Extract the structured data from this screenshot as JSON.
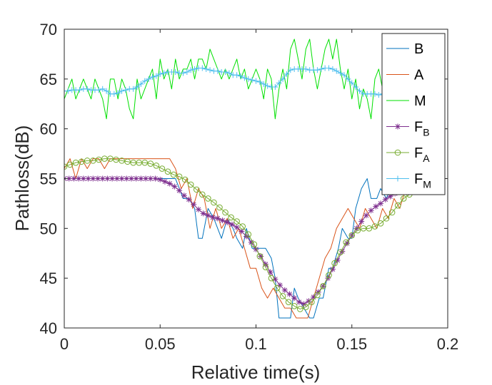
{
  "chart_data": {
    "type": "line",
    "title": "",
    "xlabel": "Relative time(s)",
    "ylabel": "Pathloss(dB)",
    "xlim": [
      0,
      0.2
    ],
    "ylim": [
      40,
      70
    ],
    "xticks": [
      0,
      0.05,
      0.1,
      0.15,
      0.2
    ],
    "xtick_labels": [
      "0",
      "0.05",
      "0.1",
      "0.15",
      "0.2"
    ],
    "yticks": [
      40,
      45,
      50,
      55,
      60,
      65,
      70
    ],
    "ytick_labels": [
      "40",
      "45",
      "50",
      "55",
      "60",
      "65",
      "70"
    ],
    "grid": false,
    "legend_position": "top-right",
    "series": [
      {
        "name": "B",
        "sub": "",
        "color": "#0072BD",
        "marker": "none",
        "x": [
          0,
          0.005,
          0.01,
          0.015,
          0.02,
          0.025,
          0.03,
          0.035,
          0.04,
          0.045,
          0.05,
          0.055,
          0.058,
          0.06,
          0.062,
          0.065,
          0.068,
          0.07,
          0.072,
          0.075,
          0.078,
          0.08,
          0.082,
          0.085,
          0.088,
          0.09,
          0.093,
          0.095,
          0.098,
          0.1,
          0.102,
          0.105,
          0.108,
          0.11,
          0.112,
          0.115,
          0.118,
          0.12,
          0.122,
          0.125,
          0.128,
          0.13,
          0.133,
          0.135,
          0.138,
          0.14,
          0.143,
          0.145,
          0.148,
          0.15,
          0.152,
          0.155,
          0.158,
          0.16,
          0.163,
          0.165,
          0.168,
          0.17,
          0.173,
          0.175,
          0.178,
          0.18
        ],
        "y": [
          55,
          55,
          55,
          55,
          55,
          55,
          55,
          55,
          55,
          55,
          55,
          55,
          55,
          54,
          53,
          53,
          52,
          49,
          49,
          52,
          51,
          50,
          49,
          51,
          50,
          49,
          48,
          50,
          48,
          48,
          48,
          48,
          47,
          45,
          41,
          41,
          41,
          44,
          43,
          42,
          41,
          41,
          43,
          43,
          46,
          46,
          48,
          50,
          49,
          49,
          52,
          54,
          55,
          53,
          53,
          54,
          53,
          54,
          54,
          54,
          54,
          54
        ]
      },
      {
        "name": "A",
        "sub": "",
        "color": "#D95319",
        "marker": "none",
        "x": [
          0,
          0.003,
          0.006,
          0.009,
          0.012,
          0.015,
          0.018,
          0.021,
          0.024,
          0.027,
          0.03,
          0.033,
          0.036,
          0.04,
          0.045,
          0.05,
          0.055,
          0.058,
          0.061,
          0.064,
          0.067,
          0.07,
          0.073,
          0.076,
          0.079,
          0.082,
          0.085,
          0.088,
          0.091,
          0.094,
          0.097,
          0.1,
          0.103,
          0.106,
          0.109,
          0.112,
          0.115,
          0.118,
          0.121,
          0.124,
          0.127,
          0.13,
          0.133,
          0.136,
          0.139,
          0.142,
          0.145,
          0.148,
          0.151,
          0.154,
          0.157,
          0.16,
          0.163,
          0.166,
          0.169,
          0.172,
          0.175,
          0.178
        ],
        "y": [
          56,
          57,
          55,
          57,
          56,
          57,
          57,
          56,
          57,
          57,
          57,
          57,
          57,
          57,
          57,
          57,
          57,
          56,
          54,
          55,
          52,
          54,
          53,
          50,
          52,
          50,
          51,
          49,
          50,
          48,
          46,
          46,
          44,
          43,
          44,
          43,
          42,
          42,
          41,
          41,
          41,
          43,
          45,
          47,
          48,
          50,
          51,
          52,
          51,
          50,
          52,
          51,
          50,
          52,
          51,
          53,
          52,
          54
        ]
      },
      {
        "name": "M",
        "sub": "",
        "color": "#00E000",
        "marker": "none",
        "x": [
          0,
          0.002,
          0.004,
          0.006,
          0.008,
          0.01,
          0.012,
          0.014,
          0.016,
          0.018,
          0.02,
          0.022,
          0.024,
          0.026,
          0.028,
          0.03,
          0.032,
          0.034,
          0.036,
          0.038,
          0.04,
          0.042,
          0.044,
          0.046,
          0.048,
          0.05,
          0.052,
          0.054,
          0.056,
          0.058,
          0.06,
          0.062,
          0.064,
          0.066,
          0.068,
          0.07,
          0.072,
          0.074,
          0.076,
          0.078,
          0.08,
          0.082,
          0.084,
          0.086,
          0.088,
          0.09,
          0.092,
          0.094,
          0.096,
          0.098,
          0.1,
          0.102,
          0.104,
          0.106,
          0.108,
          0.11,
          0.112,
          0.114,
          0.116,
          0.118,
          0.12,
          0.122,
          0.124,
          0.126,
          0.128,
          0.13,
          0.132,
          0.134,
          0.136,
          0.138,
          0.14,
          0.142,
          0.144,
          0.146,
          0.148,
          0.15,
          0.152,
          0.154,
          0.156,
          0.158,
          0.16,
          0.162,
          0.164,
          0.166,
          0.168,
          0.17,
          0.172,
          0.174,
          0.176,
          0.178,
          0.18
        ],
        "y": [
          63,
          64,
          65,
          63,
          64,
          65,
          64,
          63,
          65,
          64,
          63,
          61,
          65,
          65,
          63,
          65,
          64,
          62,
          61,
          65,
          63,
          64,
          65,
          66,
          63,
          67,
          65,
          66,
          64,
          67,
          65,
          66,
          66,
          67,
          65,
          67,
          67,
          66,
          68,
          67,
          66,
          65,
          66,
          65,
          66,
          67,
          65,
          66,
          64,
          65,
          66,
          65,
          63,
          66,
          65,
          61,
          64,
          66,
          64,
          68,
          69,
          67,
          65,
          68,
          69,
          66,
          64,
          66,
          68,
          69,
          67,
          69,
          66,
          64,
          66,
          63,
          65,
          62,
          64,
          63,
          61,
          65,
          66,
          64,
          64,
          63,
          65,
          64,
          66,
          64,
          66
        ]
      },
      {
        "name": "F",
        "sub": "B",
        "color": "#7E2F8E",
        "marker": "star",
        "x": [
          0,
          0.0025,
          0.005,
          0.0075,
          0.01,
          0.0125,
          0.015,
          0.0175,
          0.02,
          0.0225,
          0.025,
          0.0275,
          0.03,
          0.0325,
          0.035,
          0.0375,
          0.04,
          0.0425,
          0.045,
          0.0475,
          0.05,
          0.0525,
          0.055,
          0.0575,
          0.06,
          0.0625,
          0.065,
          0.0675,
          0.07,
          0.0725,
          0.075,
          0.0775,
          0.08,
          0.0825,
          0.085,
          0.0875,
          0.09,
          0.0925,
          0.095,
          0.0975,
          0.1,
          0.1025,
          0.105,
          0.1075,
          0.11,
          0.1125,
          0.115,
          0.1175,
          0.12,
          0.1225,
          0.125,
          0.1275,
          0.13,
          0.1325,
          0.135,
          0.1375,
          0.14,
          0.1425,
          0.145,
          0.1475,
          0.15,
          0.1525,
          0.155,
          0.1575,
          0.16,
          0.1625,
          0.165,
          0.1675,
          0.17,
          0.1725,
          0.175,
          0.1775,
          0.18
        ],
        "y": [
          55,
          55,
          55,
          55,
          55,
          55,
          55,
          55,
          55,
          55,
          55,
          55,
          55,
          55,
          55,
          55,
          55,
          55,
          55,
          55,
          54.9,
          54.7,
          54.5,
          54.2,
          53.8,
          53.3,
          52.9,
          52.4,
          51.9,
          51.5,
          51.3,
          51.1,
          51,
          50.8,
          50.6,
          50.4,
          50.1,
          49.7,
          49.2,
          48.6,
          47.9,
          47.2,
          46.4,
          45.6,
          44.9,
          44.3,
          43.8,
          43.4,
          43,
          42.6,
          42.4,
          42.7,
          43.1,
          43.6,
          44.2,
          45,
          45.9,
          46.8,
          47.7,
          48.5,
          49.3,
          50,
          50.7,
          51.3,
          51.8,
          52.2,
          52.5,
          52.9,
          53.2,
          53.5,
          53.7,
          53.8,
          53.9
        ]
      },
      {
        "name": "F",
        "sub": "A",
        "color": "#77AC30",
        "marker": "circle",
        "x": [
          0,
          0.003,
          0.006,
          0.009,
          0.012,
          0.015,
          0.018,
          0.021,
          0.024,
          0.027,
          0.03,
          0.033,
          0.036,
          0.039,
          0.042,
          0.045,
          0.048,
          0.051,
          0.054,
          0.057,
          0.06,
          0.063,
          0.066,
          0.069,
          0.072,
          0.075,
          0.078,
          0.081,
          0.084,
          0.087,
          0.09,
          0.093,
          0.096,
          0.099,
          0.102,
          0.105,
          0.108,
          0.111,
          0.114,
          0.117,
          0.12,
          0.123,
          0.126,
          0.129,
          0.132,
          0.135,
          0.138,
          0.141,
          0.144,
          0.147,
          0.15,
          0.153,
          0.156,
          0.159,
          0.162,
          0.165,
          0.168,
          0.171,
          0.174,
          0.177,
          0.18
        ],
        "y": [
          56.2,
          56.4,
          56.6,
          56.7,
          56.8,
          56.8,
          56.9,
          57,
          57,
          56.9,
          56.8,
          56.7,
          56.6,
          56.6,
          56.6,
          56.5,
          56.3,
          56,
          55.7,
          55.4,
          55.2,
          54.9,
          54.4,
          53.9,
          53.4,
          53,
          52.6,
          52.1,
          51.6,
          51.1,
          50.7,
          50.2,
          49.4,
          48.4,
          47.2,
          46.1,
          45,
          44,
          43.2,
          42.6,
          42.2,
          41.9,
          42.1,
          42.6,
          43.3,
          44.2,
          45.3,
          46.5,
          47.6,
          48.6,
          49.3,
          49.8,
          50,
          50,
          50.2,
          50.5,
          51,
          51.6,
          52.3,
          53,
          53.4
        ]
      },
      {
        "name": "F",
        "sub": "M",
        "color": "#4DBEEE",
        "marker": "plus",
        "x": [
          0,
          0.002,
          0.004,
          0.006,
          0.008,
          0.01,
          0.012,
          0.014,
          0.016,
          0.018,
          0.02,
          0.022,
          0.024,
          0.026,
          0.028,
          0.03,
          0.032,
          0.034,
          0.036,
          0.038,
          0.04,
          0.042,
          0.044,
          0.046,
          0.048,
          0.05,
          0.052,
          0.054,
          0.056,
          0.058,
          0.06,
          0.062,
          0.064,
          0.066,
          0.068,
          0.07,
          0.072,
          0.074,
          0.076,
          0.078,
          0.08,
          0.082,
          0.084,
          0.086,
          0.088,
          0.09,
          0.092,
          0.094,
          0.096,
          0.098,
          0.1,
          0.102,
          0.104,
          0.106,
          0.108,
          0.11,
          0.112,
          0.114,
          0.116,
          0.118,
          0.12,
          0.122,
          0.124,
          0.126,
          0.128,
          0.13,
          0.132,
          0.134,
          0.136,
          0.138,
          0.14,
          0.142,
          0.144,
          0.146,
          0.148,
          0.15,
          0.152,
          0.154,
          0.156,
          0.158,
          0.16,
          0.162,
          0.164,
          0.166,
          0.168,
          0.17,
          0.172,
          0.174,
          0.176,
          0.178,
          0.18
        ],
        "y": [
          63.8,
          63.8,
          63.9,
          63.9,
          63.9,
          64,
          64,
          63.9,
          63.9,
          63.9,
          64,
          63.8,
          63.5,
          63.5,
          63.6,
          63.8,
          63.9,
          64,
          64,
          64.2,
          64.5,
          64.8,
          65,
          65.2,
          65.3,
          65.5,
          65.6,
          65.7,
          65.7,
          65.7,
          65.6,
          65.6,
          65.7,
          65.9,
          66,
          66.1,
          66.1,
          66,
          65.9,
          65.8,
          65.8,
          65.7,
          65.7,
          65.6,
          65.4,
          65.4,
          65.3,
          65.1,
          65,
          64.9,
          64.8,
          64.7,
          64.5,
          64.3,
          64.2,
          64.2,
          64.6,
          65,
          65.5,
          65.9,
          66,
          66,
          66,
          66,
          65.9,
          65.9,
          65.9,
          66,
          66.1,
          66.1,
          66,
          65.8,
          65.6,
          65.4,
          65,
          64.6,
          64.2,
          63.8,
          63.5,
          63.5,
          63.5,
          63.5,
          63.4,
          63.5,
          63.6,
          63.5,
          63.4,
          63.5,
          63.6,
          63.7,
          63.7
        ]
      }
    ]
  }
}
